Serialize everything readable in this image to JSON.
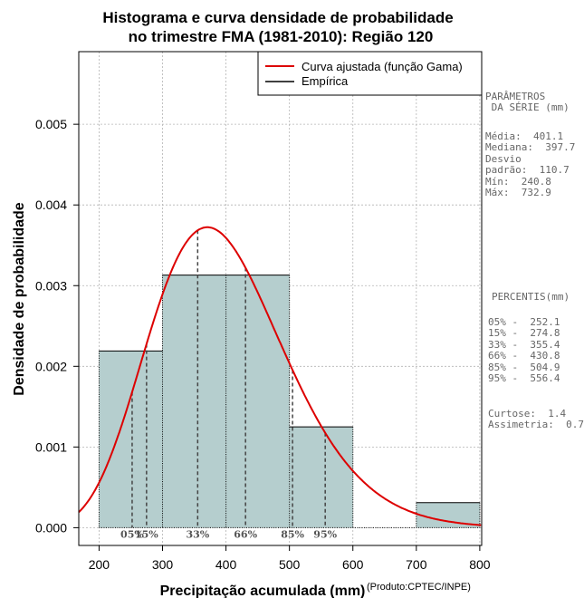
{
  "chart_data": {
    "type": "histogram",
    "title_line1": "Histograma e curva densidade de probabilidade",
    "title_line2": "no trimestre FMA (1981-2010): Região 120",
    "xlabel": "Precipitação acumulada (mm)",
    "ylabel": "Densidade de probabilidade",
    "credit": "(Produto:CPTEC/INPE)",
    "xlim": [
      168,
      803
    ],
    "ylim": [
      -0.00022,
      0.0059
    ],
    "x_ticks": [
      200,
      300,
      400,
      500,
      600,
      700,
      800
    ],
    "x_tick_labels": [
      "200",
      "300",
      "400",
      "500",
      "600",
      "700",
      "800"
    ],
    "y_ticks": [
      0,
      0.001,
      0.002,
      0.003,
      0.004,
      0.005
    ],
    "y_tick_labels": [
      "0.000",
      "0.001",
      "0.002",
      "0.003",
      "0.004",
      "0.005"
    ],
    "grid": true,
    "bins": [
      {
        "start": 200,
        "end": 300,
        "density": 0.00219
      },
      {
        "start": 300,
        "end": 400,
        "density": 0.00313
      },
      {
        "start": 400,
        "end": 500,
        "density": 0.00313
      },
      {
        "start": 500,
        "end": 600,
        "density": 0.00125
      },
      {
        "start": 600,
        "end": 700,
        "density": 0
      },
      {
        "start": 700,
        "end": 800,
        "density": 0.00031
      }
    ],
    "bar_color": "#b5cece",
    "curve_color": "#dd0000",
    "gamma_fit": {
      "mean": 401.1,
      "sd": 110.7
    },
    "percentiles": [
      {
        "label": "05%",
        "value": 252.1
      },
      {
        "label": "15%",
        "value": 274.8
      },
      {
        "label": "33%",
        "value": 355.4
      },
      {
        "label": "66%",
        "value": 430.8
      },
      {
        "label": "85%",
        "value": 504.9
      },
      {
        "label": "95%",
        "value": 556.4
      }
    ],
    "legend": {
      "position": "top-right",
      "items": [
        {
          "label": "Curva ajustada (função Gama)",
          "color": "#dd0000"
        },
        {
          "label": "Empírica",
          "color": "#000000"
        }
      ]
    }
  },
  "side_panel": {
    "params_title": "PARÂMETROS\n DA SÉRIE (mm)",
    "params_body": "Média:  401.1\nMediana:  397.7\nDesvio\npadrão:  110.7\nMín:  240.8\nMáx:  732.9",
    "pct_title": "PERCENTIS(mm)",
    "pct_body": "05% -  252.1\n15% -  274.8\n33% -  355.4\n66% -  430.8\n85% -  504.9\n95% -  556.4",
    "shape_body": "Curtose:  1.4\nAssimetria:  0.7"
  }
}
